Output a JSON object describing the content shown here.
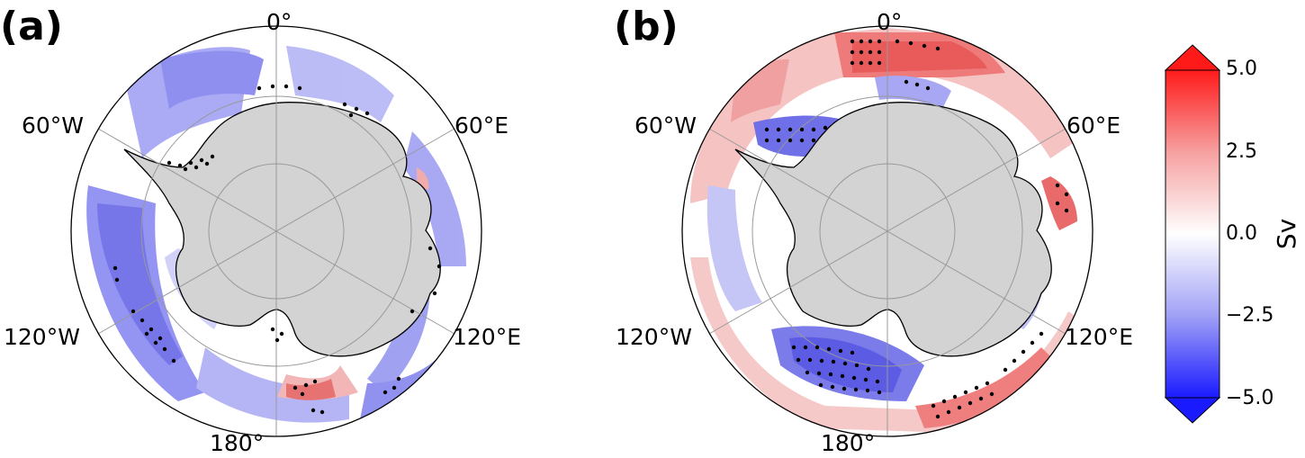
{
  "panels": [
    {
      "label": "(a)",
      "lon_labels": {
        "top": "0°",
        "left_upper": "60°W",
        "right_upper": "60°E",
        "left_lower": "120°W",
        "right_lower": "120°E",
        "bottom": "180°"
      }
    },
    {
      "label": "(b)",
      "lon_labels": {
        "top": "0°",
        "left_upper": "60°W",
        "right_upper": "60°E",
        "left_lower": "120°W",
        "right_lower": "120°E",
        "bottom": "180°"
      }
    }
  ],
  "colorbar": {
    "unit": "Sv",
    "ticks": [
      "5.0",
      "2.5",
      "0.0",
      "−2.5",
      "−5.0"
    ],
    "tick_values": [
      5.0,
      2.5,
      0.0,
      -2.5,
      -5.0
    ],
    "range": [
      -5.0,
      5.0
    ],
    "extend": "both",
    "colors": {
      "max": "#ff0000",
      "mid": "#ffffff",
      "min": "#0000ff"
    }
  },
  "map": {
    "projection": "south-polar-stereographic",
    "land_color": "#d3d3d3",
    "coast_color": "#000000",
    "grid_color": "#999999"
  }
}
